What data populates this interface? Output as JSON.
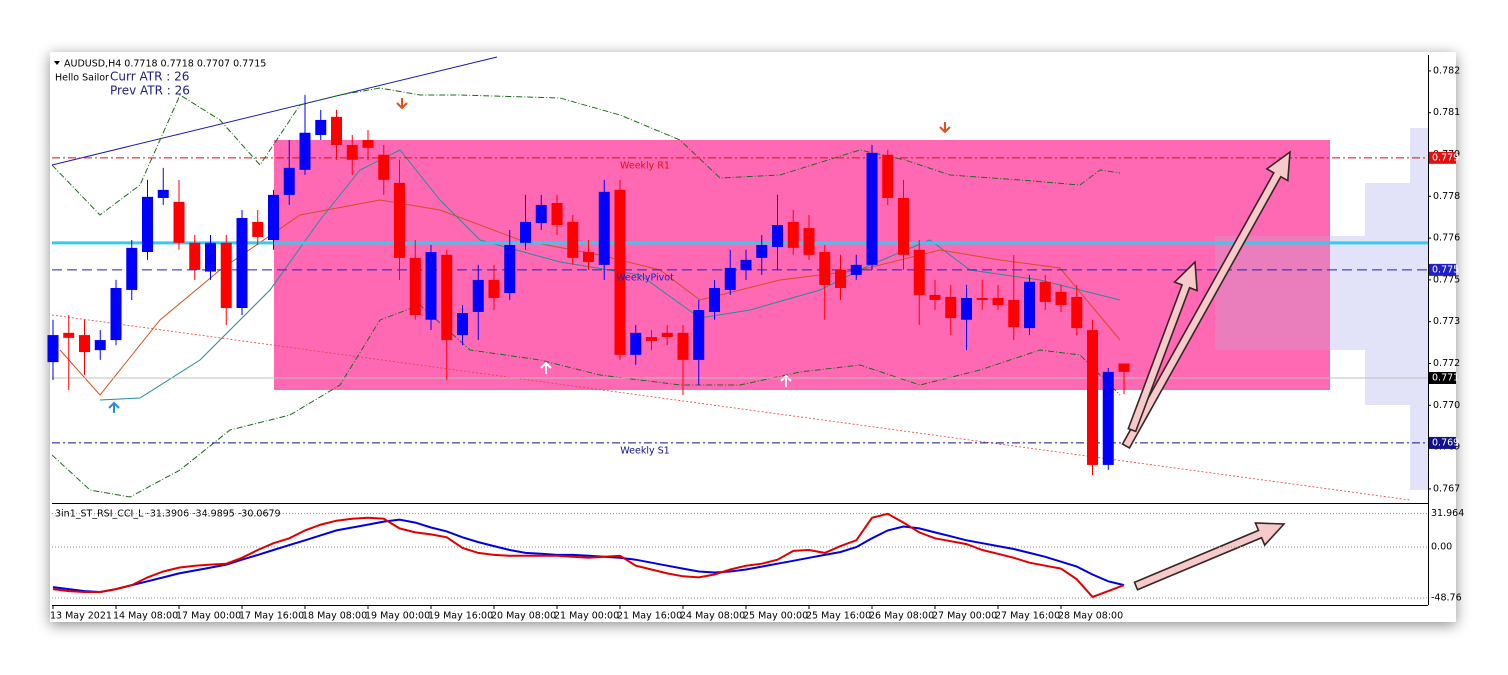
{
  "chart_data": [
    {
      "type": "candlestick",
      "title": "AUDUSD,H4  0.7718 0.7718 0.7707 0.7715",
      "annotations": [
        "Hello Sailor",
        "Curr ATR : 26",
        "Prev ATR : 26"
      ],
      "categories": [
        "13 May 2021",
        null,
        null,
        null,
        "14 May 08:00",
        null,
        null,
        null,
        "17 May 00:00",
        null,
        null,
        null,
        "17 May 16:00",
        null,
        null,
        null,
        "18 May 08:00",
        null,
        null,
        null,
        "19 May 00:00",
        null,
        null,
        null,
        "19 May 16:00",
        null,
        null,
        null,
        "20 May 08:00",
        null,
        null,
        null,
        "21 May 00:00",
        null,
        null,
        null,
        "21 May 16:00",
        null,
        null,
        null,
        "24 May 08:00",
        null,
        null,
        null,
        "25 May 00:00",
        null,
        null,
        null,
        "25 May 16:00",
        null,
        null,
        null,
        "26 May 08:00",
        null,
        null,
        null,
        "27 May 00:00",
        null,
        null,
        null,
        "27 May 16:00",
        null,
        null,
        null,
        "28 May 08:00",
        null,
        null,
        null,
        null
      ],
      "open": [
        0.77185,
        0.7729,
        0.77282,
        0.77228,
        0.77264,
        0.77444,
        0.7758,
        0.77774,
        0.7776,
        0.77613,
        0.7751,
        0.77613,
        0.77379,
        0.77688,
        0.77623,
        0.77785,
        0.77875,
        0.78,
        0.78065,
        0.77964,
        0.77982,
        0.77929,
        0.77828,
        0.77559,
        0.77337,
        0.7757,
        0.77282,
        0.77365,
        0.7748,
        0.77433,
        0.77613,
        0.77684,
        0.77756,
        0.77688,
        0.7758,
        0.77534,
        0.77803,
        0.77211,
        0.77275,
        0.7729,
        0.7729,
        0.77193,
        0.77365,
        0.77444,
        0.77516,
        0.77559,
        0.77598,
        0.77688,
        0.77666,
        0.7758,
        0.77516,
        0.77498,
        0.77534,
        0.77929,
        0.77774,
        0.77588,
        0.77426,
        0.77419,
        0.77337,
        0.77415,
        0.77415,
        0.77408,
        0.77307,
        0.77473,
        0.77437,
        0.77419,
        0.773,
        0.76816,
        0.7718
      ],
      "high": [
        0.77337,
        0.77354,
        0.77337,
        0.773,
        0.7748,
        0.77623,
        0.77839,
        0.77882,
        0.77839,
        0.77641,
        0.77641,
        0.77641,
        0.77731,
        0.77731,
        0.77803,
        0.77982,
        0.78144,
        0.7809,
        0.7809,
        0.78,
        0.78018,
        0.77964,
        0.77911,
        0.77623,
        0.77605,
        0.77588,
        0.7739,
        0.77534,
        0.77534,
        0.77659,
        0.77785,
        0.77785,
        0.77785,
        0.77713,
        0.77623,
        0.77839,
        0.77839,
        0.77318,
        0.773,
        0.77318,
        0.77318,
        0.77408,
        0.7748,
        0.77588,
        0.77588,
        0.77641,
        0.77785,
        0.77731,
        0.77713,
        0.77605,
        0.7757,
        0.7757,
        0.77964,
        0.77947,
        0.77839,
        0.77623,
        0.7748,
        0.77462,
        0.77462,
        0.7748,
        0.77462,
        0.7757,
        0.77498,
        0.77498,
        0.77462,
        0.77462,
        0.77337,
        0.77164,
        0.7718
      ],
      "low": [
        0.77121,
        0.77085,
        0.77139,
        0.77193,
        0.77246,
        0.77408,
        0.77552,
        0.77749,
        0.77588,
        0.7748,
        0.7748,
        0.77318,
        0.77354,
        0.77605,
        0.77588,
        0.77749,
        0.77857,
        0.77982,
        0.77911,
        0.77857,
        0.77911,
        0.77785,
        0.7748,
        0.77337,
        0.773,
        0.77121,
        0.77246,
        0.77264,
        0.77372,
        0.77408,
        0.77588,
        0.77659,
        0.77641,
        0.77534,
        0.77516,
        0.7748,
        0.77193,
        0.77175,
        0.77228,
        0.77246,
        0.77067,
        0.77103,
        0.77337,
        0.77426,
        0.7748,
        0.77498,
        0.77516,
        0.7757,
        0.77552,
        0.77337,
        0.77408,
        0.7748,
        0.77516,
        0.77749,
        0.77516,
        0.77318,
        0.77372,
        0.77282,
        0.77228,
        0.77372,
        0.77372,
        0.77264,
        0.77282,
        0.77372,
        0.77365,
        0.77282,
        0.7678,
        0.76798,
        0.7707
      ],
      "close": [
        0.77282,
        0.77272,
        0.77221,
        0.77264,
        0.77451,
        0.77595,
        0.77778,
        0.77803,
        0.77613,
        0.77516,
        0.77613,
        0.77379,
        0.77702,
        0.77634,
        0.77785,
        0.77882,
        0.78008,
        0.78054,
        0.77964,
        0.77911,
        0.77954,
        0.77839,
        0.77559,
        0.77354,
        0.7758,
        0.77264,
        0.77361,
        0.7748,
        0.77415,
        0.77605,
        0.77688,
        0.77749,
        0.77677,
        0.77559,
        0.77544,
        0.77796,
        0.77211,
        0.7729,
        0.77261,
        0.77275,
        0.77193,
        0.77372,
        0.77451,
        0.77523,
        0.77552,
        0.77605,
        0.77677,
        0.77595,
        0.7757,
        0.77462,
        0.77451,
        0.77534,
        0.77936,
        0.77774,
        0.7757,
        0.77426,
        0.77408,
        0.77343,
        0.77415,
        0.77408,
        0.7739,
        0.77311,
        0.77473,
        0.77401,
        0.7739,
        0.77307,
        0.76816,
        0.7715,
        0.7715
      ],
      "up_color": "#0000ff",
      "down_color": "#ff0000",
      "ylim": [
        0.76683,
        0.78287
      ],
      "yticks": [
        {
          "value": 0.7823,
          "label": "0.782"
        },
        {
          "value": 0.7808,
          "label": "0.781"
        },
        {
          "value": 0.7793,
          "label": "0.779"
        },
        {
          "value": 0.7778,
          "label": "0.778"
        },
        {
          "value": 0.7763,
          "label": "0.776"
        },
        {
          "value": 0.7748,
          "label": "0.775"
        },
        {
          "value": 0.7733,
          "label": "0.773"
        },
        {
          "value": 0.7718,
          "label": "0.772"
        },
        {
          "value": 0.7703,
          "label": "0.770"
        },
        {
          "value": 0.7688,
          "label": "0.769"
        },
        {
          "value": 0.7673,
          "label": "0.767"
        }
      ],
      "price_lines": [
        {
          "name": "Weekly R1",
          "value": 0.77918,
          "label": "0.779",
          "color": "#e01010",
          "dash": "8 3 2 3"
        },
        {
          "name": "WeeklyPivot",
          "value": 0.77516,
          "label": "0.775",
          "color": "#2020c8",
          "dash": "10 5"
        },
        {
          "value": 0.77128,
          "label": "0.771",
          "color": "#000000",
          "dash": "none"
        },
        {
          "name": "Weekly S1",
          "value": 0.76895,
          "label": "0.769",
          "color": "#101090",
          "dash": "8 3 2 3"
        }
      ],
      "level": {
        "value": 0.77613,
        "color": "#33ccee"
      }
    },
    {
      "type": "line",
      "title": "3in1_ST_RSI_CCI_L -31.3906 -34.9895 -30.0679",
      "ylim": [
        -55.4,
        40.2
      ],
      "yticks": [
        31.964,
        {
          "value": 0,
          "label": "0.00"
        },
        -48.76
      ],
      "series": [
        {
          "color": "#0000e0",
          "values": [
            -38.3,
            -40.2,
            -42.1,
            -43.0,
            -40.2,
            -36.4,
            -32.7,
            -29.0,
            -25.2,
            -22.4,
            -19.6,
            -16.8,
            -12.1,
            -7.5,
            -2.8,
            1.9,
            6.5,
            11.2,
            15.9,
            18.7,
            21.5,
            24.3,
            26.2,
            23.4,
            18.7,
            15.0,
            9.3,
            4.7,
            0.9,
            -2.8,
            -5.6,
            -6.5,
            -7.5,
            -7.5,
            -8.4,
            -9.3,
            -10.3,
            -12.1,
            -15.0,
            -17.8,
            -20.6,
            -23.4,
            -24.3,
            -23.4,
            -21.5,
            -18.7,
            -15.9,
            -13.1,
            -10.3,
            -7.5,
            -4.7,
            0,
            8.4,
            15.9,
            19.6,
            17.8,
            14.0,
            10.3,
            6.5,
            3.7,
            0.9,
            -1.9,
            -5.6,
            -9.3,
            -14.0,
            -18.7,
            -26.2,
            -32.7,
            -36.4
          ]
        },
        {
          "color": "#e00000",
          "values": [
            -40.2,
            -42.1,
            -43.0,
            -43.0,
            -40.2,
            -36.4,
            -29.0,
            -23.4,
            -19.6,
            -17.8,
            -16.8,
            -15.9,
            -10.3,
            -2.8,
            3.7,
            8.4,
            15.9,
            21.5,
            25.2,
            27.1,
            28.0,
            27.1,
            17.8,
            14.0,
            12.1,
            9.3,
            -0.9,
            -5.6,
            -7.5,
            -8.4,
            -8.4,
            -8.4,
            -8.4,
            -9.3,
            -10.3,
            -9.3,
            -8.4,
            -17.8,
            -21.5,
            -25.2,
            -28.0,
            -29.0,
            -26.2,
            -21.5,
            -17.8,
            -15.9,
            -12.1,
            -3.7,
            -2.8,
            -5.6,
            0.9,
            6.5,
            28.0,
            31.8,
            23.4,
            14.0,
            8.4,
            5.6,
            2.8,
            -2.8,
            -6.5,
            -10.3,
            -15.0,
            -17.8,
            -20.6,
            -30.8,
            -47.7,
            -42.1,
            -36.4
          ]
        }
      ]
    }
  ]
}
